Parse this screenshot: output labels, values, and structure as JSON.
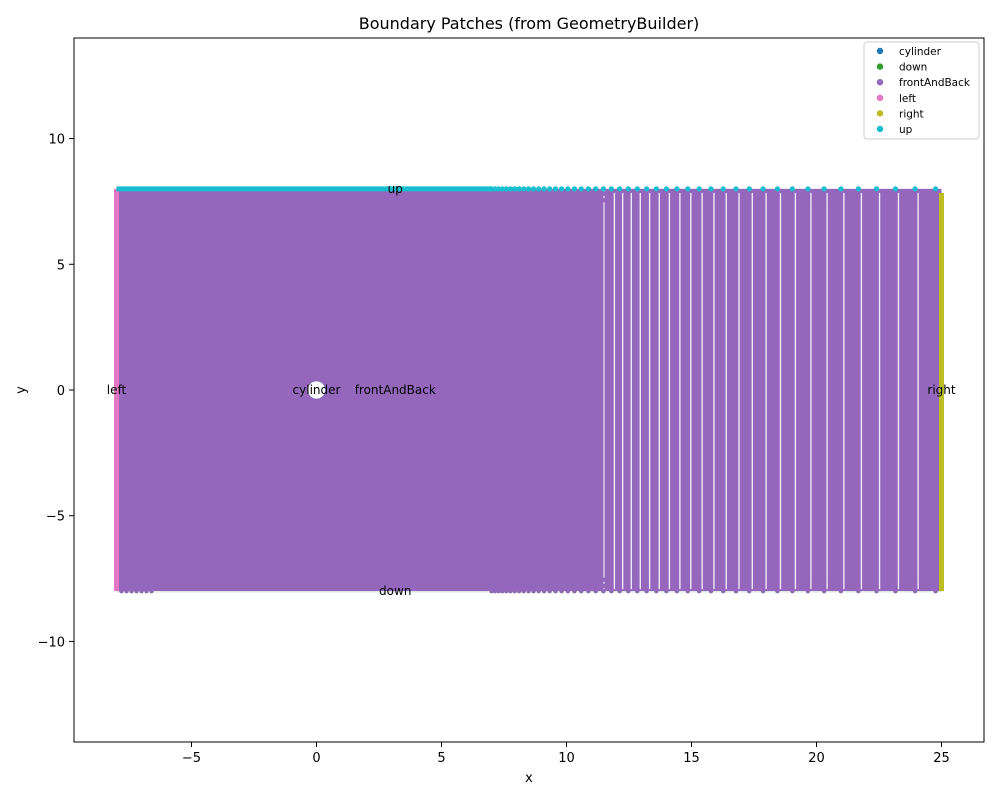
{
  "chart_data": {
    "type": "scatter",
    "title": "Boundary Patches (from GeometryBuilder)",
    "xlabel": "x",
    "ylabel": "y",
    "xlim": [
      -9.7,
      26.7
    ],
    "ylim": [
      -14,
      14
    ],
    "xticks": [
      -5,
      0,
      5,
      10,
      15,
      20,
      25
    ],
    "yticks": [
      -10,
      -5,
      0,
      5,
      10
    ],
    "xtick_labels": [
      "−5",
      "0",
      "5",
      "10",
      "15",
      "20",
      "25"
    ],
    "ytick_labels": [
      "−10",
      "−5",
      "0",
      "5",
      "10"
    ],
    "grid": false,
    "legend_position": "top-right",
    "domain": {
      "x_min": -8,
      "x_max": 25,
      "y_min": -8,
      "y_max": 8
    },
    "cylinder": {
      "center": [
        0,
        0
      ],
      "radius": 0.35
    },
    "series": [
      {
        "name": "cylinder",
        "color": "#1f77b4"
      },
      {
        "name": "down",
        "color": "#2ca02c"
      },
      {
        "name": "frontAndBack",
        "color": "#9467bd"
      },
      {
        "name": "left",
        "color": "#e377c2"
      },
      {
        "name": "right",
        "color": "#bcbd22"
      },
      {
        "name": "up",
        "color": "#17becf"
      }
    ],
    "annotations": [
      {
        "text": "up",
        "x": 3.15,
        "y": 8.0
      },
      {
        "text": "down",
        "x": 3.15,
        "y": -8.0
      },
      {
        "text": "left",
        "x": -8.0,
        "y": 0.0
      },
      {
        "text": "right",
        "x": 25.0,
        "y": 0.0
      },
      {
        "text": "cylinder",
        "x": 0.0,
        "y": 0.0
      },
      {
        "text": "frontAndBack",
        "x": 3.15,
        "y": 0.0
      }
    ]
  }
}
